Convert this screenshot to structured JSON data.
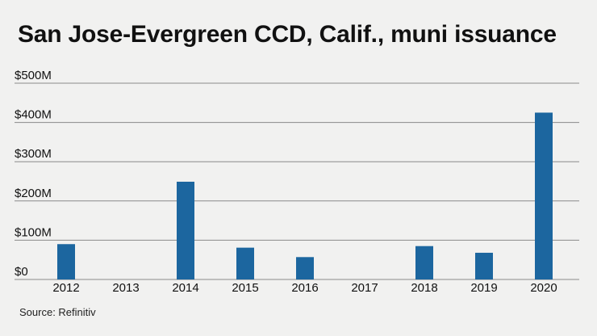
{
  "title": "San Jose-Evergreen CCD, Calif., muni issuance",
  "source": "Source: Refinitiv",
  "chart_data": {
    "type": "bar",
    "title": "San Jose-Evergreen CCD, Calif., muni issuance",
    "xlabel": "",
    "ylabel": "",
    "categories": [
      "2012",
      "2013",
      "2014",
      "2015",
      "2016",
      "2017",
      "2018",
      "2019",
      "2020"
    ],
    "values": [
      90,
      0,
      249,
      81,
      57,
      0,
      85,
      68,
      425
    ],
    "y_unit": "$M",
    "ylim": [
      0,
      500
    ],
    "yticks": [
      0,
      100,
      200,
      300,
      400,
      500
    ],
    "ytick_labels": [
      "$0",
      "$100M",
      "$200M",
      "$300M",
      "$400M",
      "$500M"
    ],
    "grid": true,
    "bar_color": "#1c669f",
    "gridline_color": "#8a8a8a"
  }
}
